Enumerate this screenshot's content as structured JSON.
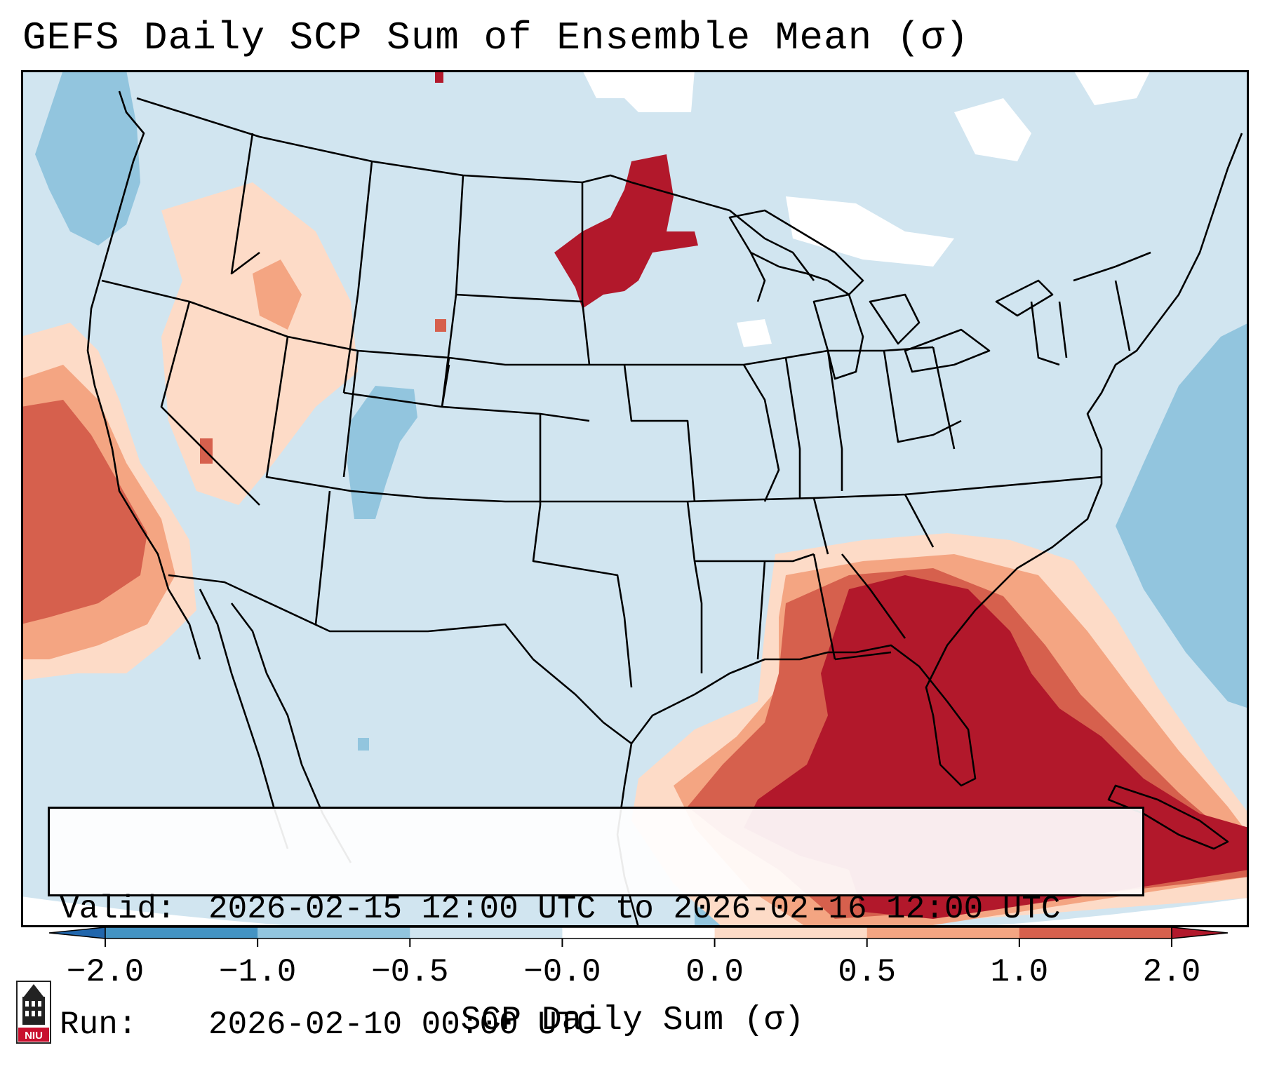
{
  "title": "GEFS Daily SCP Sum of Ensemble Mean (σ)",
  "info": {
    "valid_label": "Valid:",
    "valid_value": "2026-02-15 12:00 UTC to 2026-02-16 12:00 UTC",
    "run_label": "Run:",
    "run_value": "2026-02-10 00:00 UTC"
  },
  "colorbar": {
    "label": "SCP Daily Sum (σ)",
    "ticks": [
      "−2.0",
      "−1.0",
      "−0.5",
      "−0.0",
      "0.0",
      "0.5",
      "1.0",
      "2.0"
    ],
    "bins": [
      {
        "range": "< -2.0",
        "color": "#2166ac"
      },
      {
        "range": "-2.0 to -1.0",
        "color": "#4393c3"
      },
      {
        "range": "-1.0 to -0.5",
        "color": "#92c5de"
      },
      {
        "range": "-0.5 to -0.0",
        "color": "#d1e5f0"
      },
      {
        "range": "-0.0 to 0.0",
        "color": "#ffffff"
      },
      {
        "range": "0.0 to 0.5",
        "color": "#fddbc7"
      },
      {
        "range": "0.5 to 1.0",
        "color": "#f4a582"
      },
      {
        "range": "1.0 to 2.0",
        "color": "#d6604d"
      },
      {
        "range": "> 2.0",
        "color": "#b2182b"
      }
    ]
  },
  "logo": {
    "text": "NIU",
    "icon": "university-tower-icon"
  },
  "colors": {
    "background_anomaly": "#d1e5f0",
    "no_anomaly": "#ffffff",
    "border": "#000000"
  }
}
